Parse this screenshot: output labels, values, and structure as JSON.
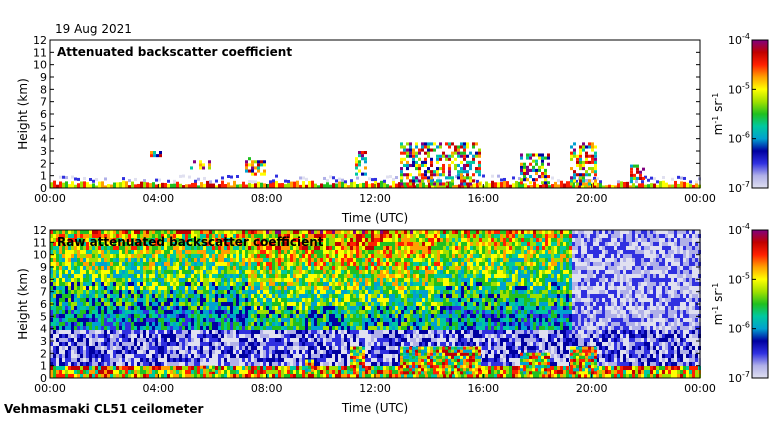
{
  "date_label": "19 Aug 2021",
  "footer_label": "Vehmasmaki CL51 ceilometer",
  "colors": {
    "scale": [
      "#e0e0f0",
      "#b0b0e8",
      "#3030e0",
      "#0000a0",
      "#00a0d0",
      "#00c8a0",
      "#20c020",
      "#a0e000",
      "#ffff00",
      "#ffa000",
      "#ff2000",
      "#c00000",
      "#800080"
    ]
  },
  "chart_data": [
    {
      "type": "heatmap",
      "title": "Attenuated backscatter coefficient",
      "xlabel": "Time (UTC)",
      "ylabel": "Height (km)",
      "xlim": [
        "00:00",
        "00:00"
      ],
      "x_ticks": [
        "00:00",
        "04:00",
        "08:00",
        "12:00",
        "16:00",
        "20:00",
        "00:00"
      ],
      "ylim": [
        0,
        12
      ],
      "y_ticks": [
        "0",
        "1",
        "2",
        "3",
        "4",
        "5",
        "6",
        "7",
        "8",
        "9",
        "10",
        "11",
        "12"
      ],
      "colorbar": {
        "scale": "log",
        "range": [
          "10^-7",
          "10^-4"
        ],
        "tick_labels": [
          {
            "base": "10",
            "exp": "-4"
          },
          {
            "base": "10",
            "exp": "-5"
          },
          {
            "base": "10",
            "exp": "-6"
          },
          {
            "base": "10",
            "exp": "-7"
          }
        ],
        "unit": {
          "m": "m",
          "m_exp": "-1",
          "sr": "sr",
          "sr_exp": "-1"
        }
      }
    },
    {
      "type": "heatmap",
      "title": "Raw attenuated backscatter coefficient",
      "xlabel": "Time (UTC)",
      "ylabel": "Height (km)",
      "xlim": [
        "00:00",
        "00:00"
      ],
      "x_ticks": [
        "00:00",
        "04:00",
        "08:00",
        "12:00",
        "16:00",
        "20:00",
        "00:00"
      ],
      "ylim": [
        0,
        12
      ],
      "y_ticks": [
        "0",
        "1",
        "2",
        "3",
        "4",
        "5",
        "6",
        "7",
        "8",
        "9",
        "10",
        "11",
        "12"
      ],
      "colorbar": {
        "scale": "log",
        "range": [
          "10^-7",
          "10^-4"
        ],
        "tick_labels": [
          {
            "base": "10",
            "exp": "-4"
          },
          {
            "base": "10",
            "exp": "-5"
          },
          {
            "base": "10",
            "exp": "-6"
          },
          {
            "base": "10",
            "exp": "-7"
          }
        ],
        "unit": {
          "m": "m",
          "m_exp": "-1",
          "sr": "sr",
          "sr_exp": "-1"
        }
      }
    }
  ]
}
